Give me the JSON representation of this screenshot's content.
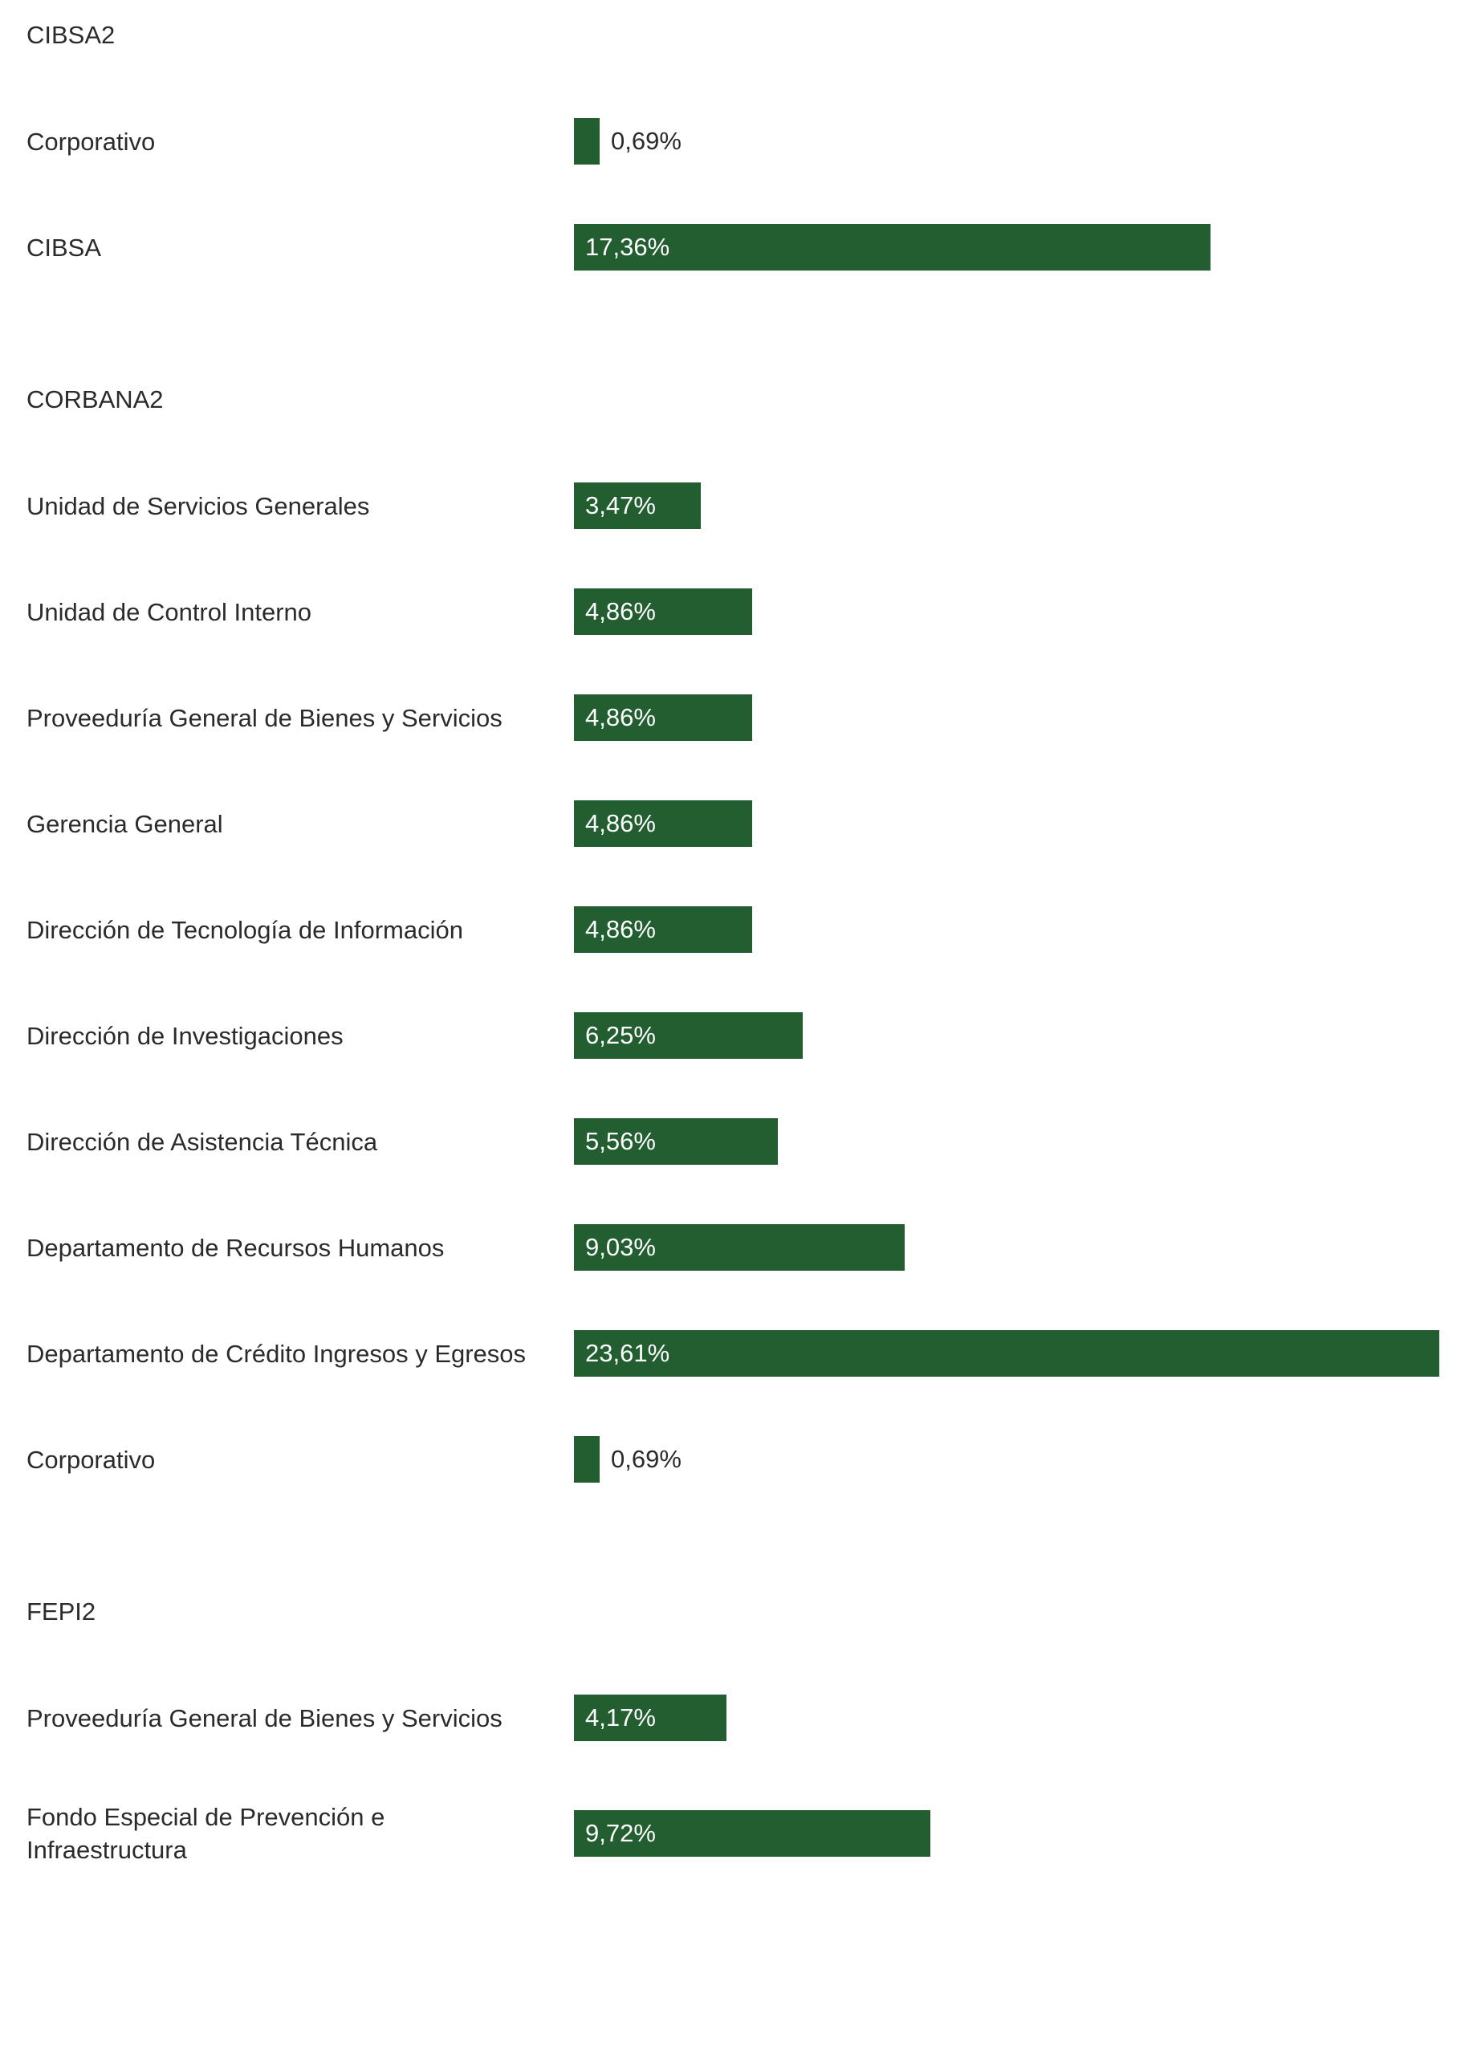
{
  "chart_data": {
    "type": "bar",
    "orientation": "horizontal",
    "color": "#235e31",
    "max_value": 23.61,
    "groups": [
      {
        "title": "CIBSA2",
        "items": [
          {
            "label": "Corporativo",
            "value": 0.69,
            "text": "0,69%"
          },
          {
            "label": "CIBSA",
            "value": 17.36,
            "text": "17,36%"
          }
        ]
      },
      {
        "title": "CORBANA2",
        "items": [
          {
            "label": "Unidad de Servicios Generales",
            "value": 3.47,
            "text": "3,47%"
          },
          {
            "label": "Unidad de Control Interno",
            "value": 4.86,
            "text": "4,86%"
          },
          {
            "label": "Proveeduría General de Bienes y Servicios",
            "value": 4.86,
            "text": "4,86%"
          },
          {
            "label": "Gerencia General",
            "value": 4.86,
            "text": "4,86%"
          },
          {
            "label": "Dirección de Tecnología de Información",
            "value": 4.86,
            "text": "4,86%"
          },
          {
            "label": "Dirección de Investigaciones",
            "value": 6.25,
            "text": "6,25%"
          },
          {
            "label": "Dirección de Asistencia Técnica",
            "value": 5.56,
            "text": "5,56%"
          },
          {
            "label": "Departamento de Recursos Humanos",
            "value": 9.03,
            "text": "9,03%"
          },
          {
            "label": "Departamento de Crédito Ingresos y Egresos",
            "value": 23.61,
            "text": "23,61%"
          },
          {
            "label": "Corporativo",
            "value": 0.69,
            "text": "0,69%"
          }
        ]
      },
      {
        "title": "FEPI2",
        "items": [
          {
            "label": "Proveeduría General de Bienes y Servicios",
            "value": 4.17,
            "text": "4,17%"
          },
          {
            "label": "Fondo Especial de Prevención e Infraestructura",
            "value": 9.72,
            "text": "9,72%"
          }
        ]
      }
    ]
  }
}
